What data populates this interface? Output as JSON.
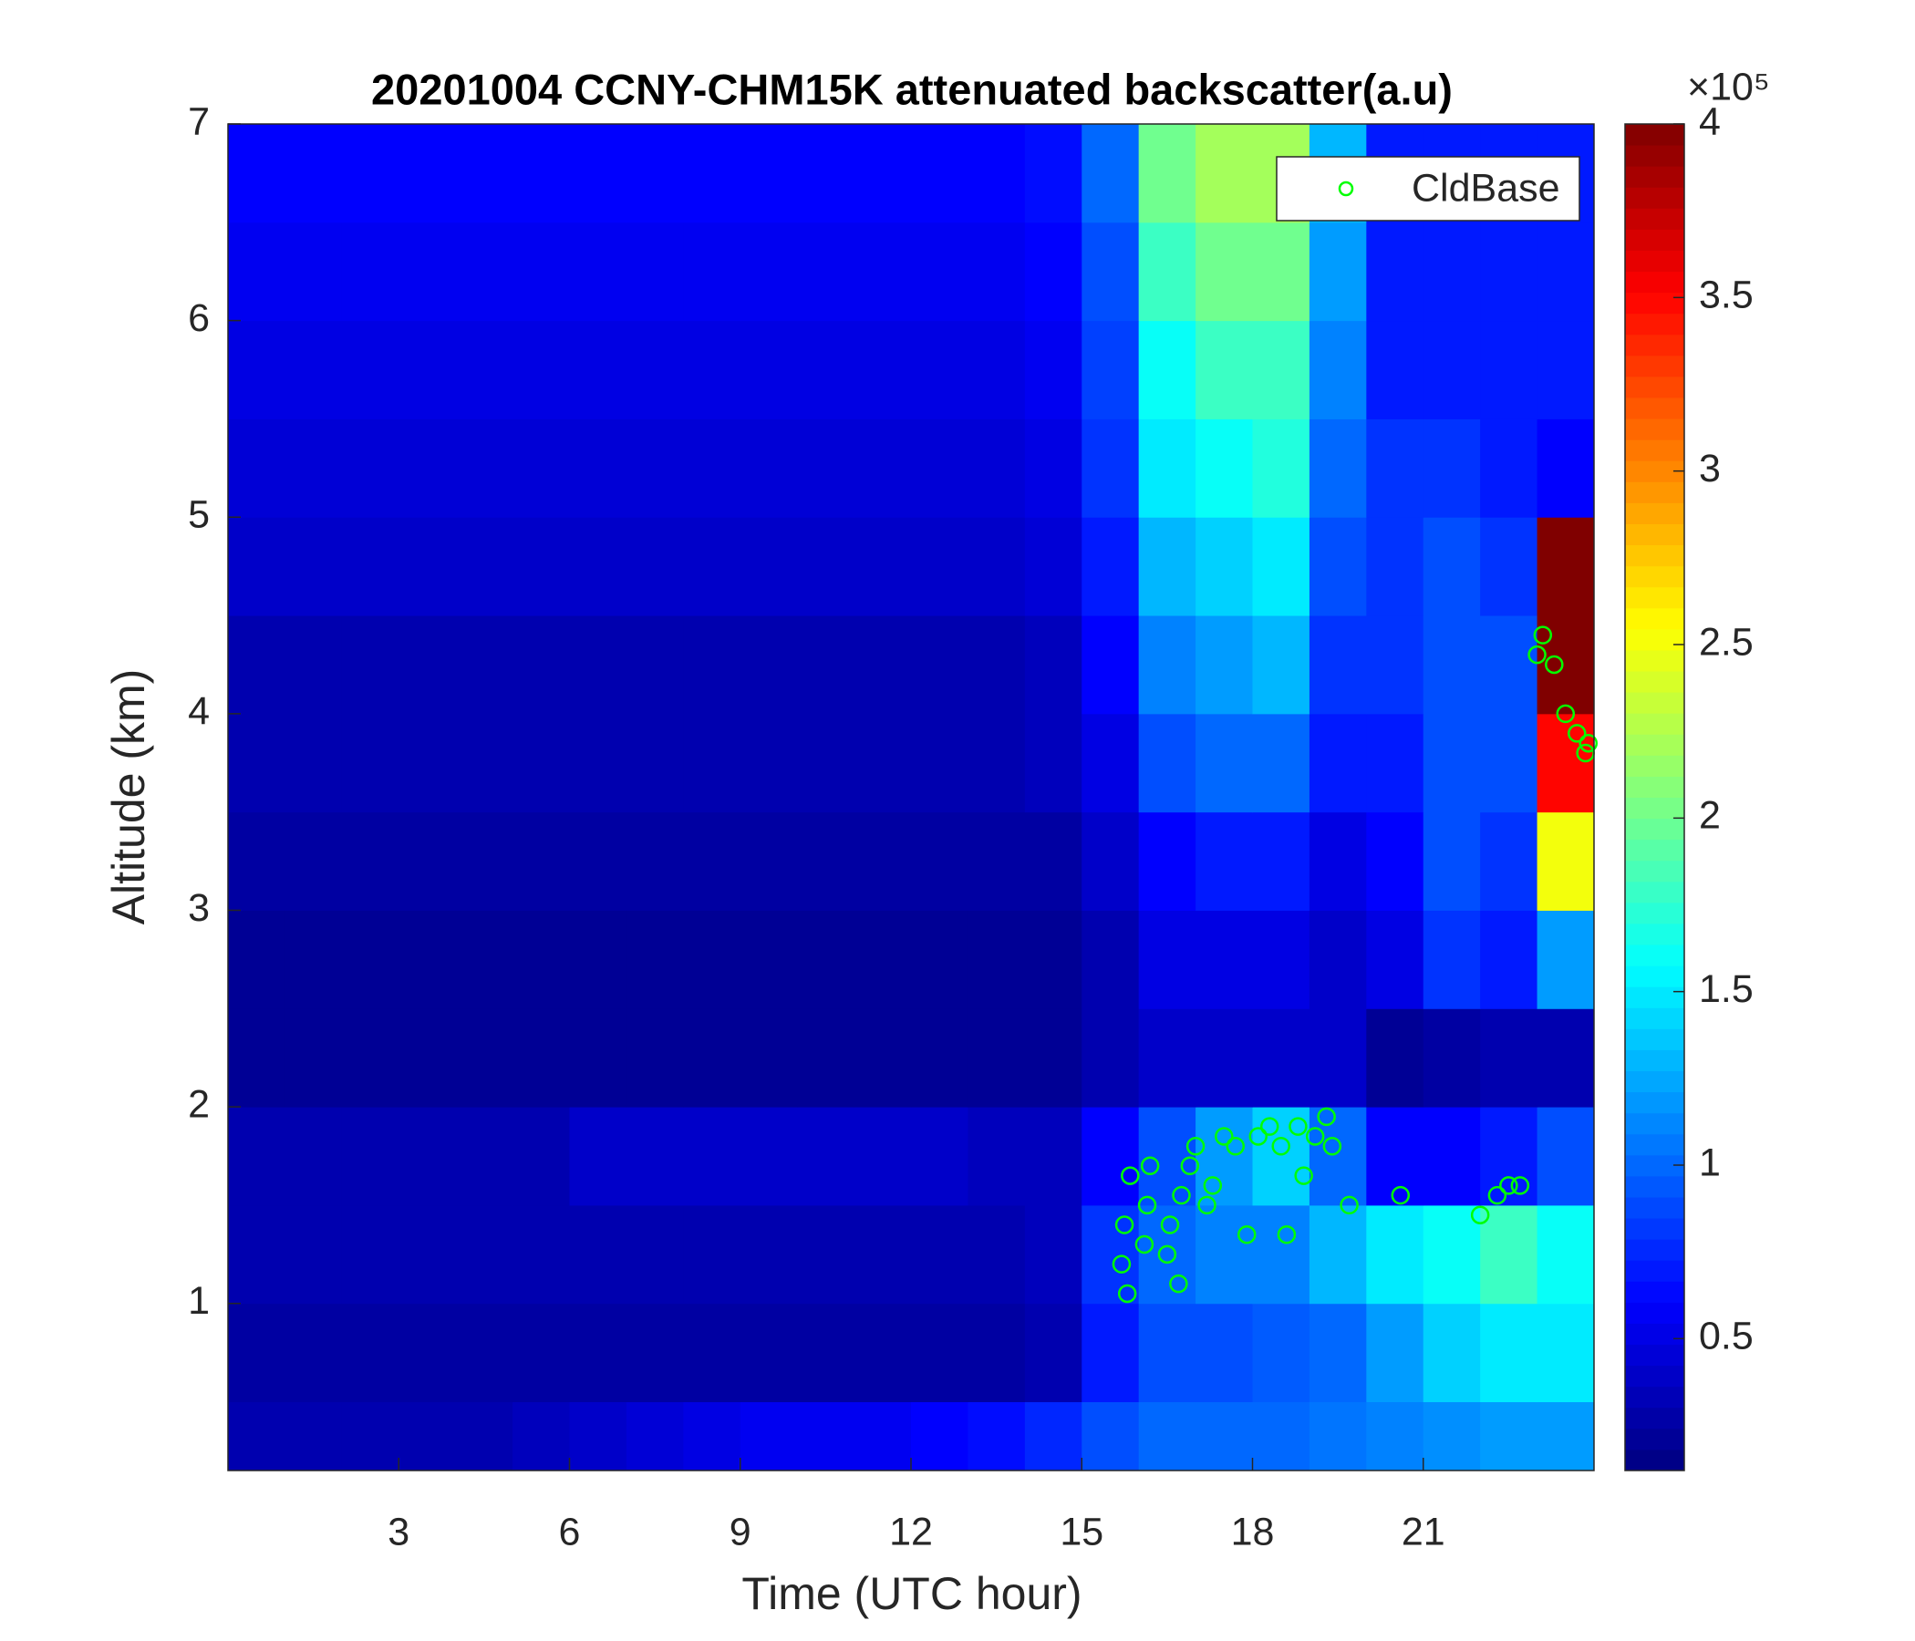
{
  "chart_data": {
    "type": "heatmap",
    "title": "20201004 CCNY-CHM15K attenuated backscatter(a.u)",
    "x_label": "Time (UTC hour)",
    "y_label": "Altitude (km)",
    "xlim": [
      0,
      24
    ],
    "ylim": [
      0.15,
      7
    ],
    "xticks": [
      3,
      6,
      9,
      12,
      15,
      18,
      21
    ],
    "yticks": [
      1,
      2,
      3,
      4,
      5,
      6,
      7
    ],
    "colormap": "jet",
    "clim": [
      0.12,
      4
    ],
    "cticks": [
      0.5,
      1,
      1.5,
      2,
      2.5,
      3,
      3.5,
      4
    ],
    "colorbar_scale": "×10⁵",
    "x_bins": [
      0,
      1,
      2,
      3,
      4,
      5,
      6,
      7,
      8,
      9,
      10,
      11,
      12,
      13,
      14,
      15,
      16,
      17,
      18,
      19,
      20,
      21,
      22,
      23,
      24
    ],
    "y_bins": [
      0.15,
      0.5,
      1,
      1.5,
      2,
      2.5,
      3,
      3.5,
      4,
      4.5,
      5,
      5.5,
      6,
      6.5,
      7
    ],
    "z": [
      [
        0.3,
        0.3,
        0.3,
        0.3,
        0.3,
        0.35,
        0.4,
        0.45,
        0.5,
        0.55,
        0.55,
        0.55,
        0.6,
        0.65,
        0.75,
        0.9,
        1.0,
        1.0,
        1.0,
        1.05,
        1.1,
        1.15,
        1.2,
        1.2
      ],
      [
        0.25,
        0.25,
        0.25,
        0.25,
        0.25,
        0.25,
        0.25,
        0.25,
        0.25,
        0.25,
        0.25,
        0.25,
        0.25,
        0.25,
        0.3,
        0.7,
        0.9,
        0.9,
        0.95,
        1.0,
        1.2,
        1.4,
        1.5,
        1.5
      ],
      [
        0.3,
        0.3,
        0.3,
        0.3,
        0.3,
        0.3,
        0.3,
        0.3,
        0.3,
        0.3,
        0.3,
        0.3,
        0.3,
        0.3,
        0.35,
        0.8,
        1.0,
        1.1,
        1.1,
        1.3,
        1.5,
        1.6,
        1.8,
        1.6
      ],
      [
        0.3,
        0.3,
        0.3,
        0.3,
        0.3,
        0.3,
        0.4,
        0.4,
        0.4,
        0.4,
        0.4,
        0.4,
        0.4,
        0.35,
        0.35,
        0.6,
        0.9,
        1.2,
        1.4,
        1.0,
        0.6,
        0.6,
        0.7,
        0.9
      ],
      [
        0.2,
        0.2,
        0.2,
        0.2,
        0.2,
        0.2,
        0.2,
        0.2,
        0.2,
        0.2,
        0.2,
        0.2,
        0.2,
        0.2,
        0.2,
        0.3,
        0.4,
        0.4,
        0.4,
        0.4,
        0.2,
        0.25,
        0.3,
        0.3
      ],
      [
        0.2,
        0.2,
        0.2,
        0.2,
        0.2,
        0.2,
        0.2,
        0.2,
        0.2,
        0.2,
        0.2,
        0.2,
        0.2,
        0.2,
        0.2,
        0.3,
        0.5,
        0.5,
        0.5,
        0.4,
        0.5,
        0.8,
        0.7,
        1.2
      ],
      [
        0.25,
        0.25,
        0.25,
        0.25,
        0.25,
        0.25,
        0.25,
        0.25,
        0.25,
        0.25,
        0.25,
        0.25,
        0.25,
        0.25,
        0.25,
        0.4,
        0.6,
        0.7,
        0.7,
        0.5,
        0.6,
        0.9,
        0.8,
        2.5
      ],
      [
        0.3,
        0.3,
        0.3,
        0.3,
        0.3,
        0.3,
        0.3,
        0.3,
        0.3,
        0.3,
        0.3,
        0.3,
        0.3,
        0.3,
        0.35,
        0.5,
        0.9,
        1.0,
        1.0,
        0.7,
        0.7,
        0.9,
        0.9,
        3.5
      ],
      [
        0.3,
        0.3,
        0.3,
        0.3,
        0.3,
        0.3,
        0.3,
        0.3,
        0.3,
        0.3,
        0.3,
        0.3,
        0.3,
        0.3,
        0.35,
        0.6,
        1.1,
        1.2,
        1.3,
        0.8,
        0.8,
        0.9,
        0.9,
        4.0
      ],
      [
        0.4,
        0.4,
        0.4,
        0.4,
        0.4,
        0.4,
        0.4,
        0.4,
        0.4,
        0.4,
        0.4,
        0.4,
        0.4,
        0.4,
        0.45,
        0.7,
        1.3,
        1.4,
        1.5,
        0.9,
        0.8,
        0.9,
        0.8,
        4.0
      ],
      [
        0.45,
        0.45,
        0.45,
        0.45,
        0.45,
        0.45,
        0.45,
        0.45,
        0.45,
        0.45,
        0.45,
        0.45,
        0.45,
        0.45,
        0.5,
        0.8,
        1.5,
        1.6,
        1.7,
        1.0,
        0.8,
        0.8,
        0.7,
        0.6
      ],
      [
        0.5,
        0.5,
        0.5,
        0.5,
        0.5,
        0.5,
        0.5,
        0.5,
        0.5,
        0.5,
        0.5,
        0.5,
        0.5,
        0.5,
        0.55,
        0.85,
        1.6,
        1.8,
        1.8,
        1.1,
        0.7,
        0.7,
        0.7,
        0.7
      ],
      [
        0.55,
        0.55,
        0.55,
        0.55,
        0.55,
        0.55,
        0.55,
        0.55,
        0.55,
        0.55,
        0.55,
        0.55,
        0.55,
        0.55,
        0.6,
        0.9,
        1.8,
        2.0,
        2.0,
        1.2,
        0.7,
        0.7,
        0.7,
        0.7
      ],
      [
        0.6,
        0.6,
        0.6,
        0.6,
        0.6,
        0.6,
        0.6,
        0.6,
        0.6,
        0.6,
        0.6,
        0.6,
        0.6,
        0.6,
        0.65,
        1.0,
        2.0,
        2.2,
        2.2,
        1.3,
        0.7,
        0.7,
        0.7,
        0.7
      ]
    ],
    "series": [
      {
        "name": "CldBase",
        "color": "#00ff00",
        "x": [
          15.7,
          15.75,
          15.8,
          15.85,
          16.1,
          16.15,
          16.2,
          16.5,
          16.55,
          16.7,
          16.75,
          16.9,
          17.0,
          17.2,
          17.3,
          17.5,
          17.7,
          17.9,
          18.1,
          18.3,
          18.5,
          18.6,
          18.8,
          18.9,
          19.1,
          19.3,
          19.4,
          19.7,
          20.6,
          22.0,
          22.3,
          22.5,
          22.7,
          23.0,
          23.1,
          23.3,
          23.5,
          23.7,
          23.85,
          23.9
        ],
        "values": [
          1.2,
          1.4,
          1.05,
          1.65,
          1.3,
          1.5,
          1.7,
          1.25,
          1.4,
          1.1,
          1.55,
          1.7,
          1.8,
          1.5,
          1.6,
          1.85,
          1.8,
          1.35,
          1.85,
          1.9,
          1.8,
          1.35,
          1.9,
          1.65,
          1.85,
          1.95,
          1.8,
          1.5,
          1.55,
          1.45,
          1.55,
          1.6,
          1.6,
          4.3,
          4.4,
          4.25,
          4.0,
          3.9,
          3.8,
          3.85
        ]
      }
    ],
    "legend": "northeast"
  }
}
